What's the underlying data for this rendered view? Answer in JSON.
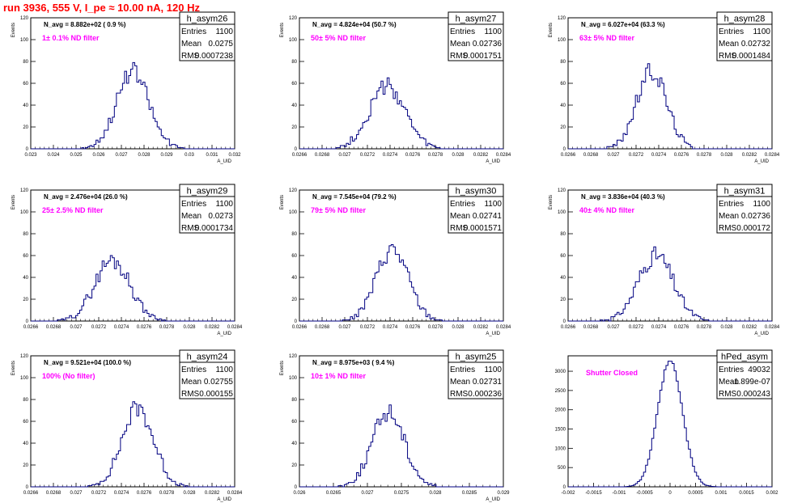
{
  "page": {
    "title": "run 3936,   555 V, I_pe ≈ 10.00 nA, 120 Hz",
    "title_color": "#ff0000",
    "hist_color": "#000080",
    "annotation_color": "#ff00ff"
  },
  "chart_data": [
    {
      "type": "bar",
      "name": "h_asym26",
      "ylabel": "Events",
      "xlabel": "A_UID",
      "nAvgText": "N_avg = 8.882e+02 ( 0.9 %)",
      "note": "1± 0.1% ND filter",
      "stats": [
        [
          "Entries",
          "1100"
        ],
        [
          "Mean",
          "0.0275"
        ],
        [
          "RMS",
          "0.0007238"
        ]
      ],
      "xlim": [
        0.023,
        0.032
      ],
      "ylim": [
        0,
        120
      ],
      "xticks": [
        "0.023",
        "0.024",
        "0.025",
        "0.026",
        "0.027",
        "0.028",
        "0.029",
        "0.03",
        "0.031",
        "0.032"
      ],
      "yticks": [
        "0",
        "20",
        "40",
        "60",
        "80",
        "100",
        "120"
      ],
      "mean": 0.0275,
      "sigma": 0.00072,
      "peak": 70,
      "seed": 26
    },
    {
      "type": "bar",
      "name": "h_asym27",
      "ylabel": "Events",
      "xlabel": "A_UID",
      "nAvgText": "N_avg = 4.824e+04 (50.7 %)",
      "note": "50± 5% ND filter",
      "stats": [
        [
          "Entries",
          "1100"
        ],
        [
          "Mean",
          "0.02736"
        ],
        [
          "RMS",
          "0.0001751"
        ]
      ],
      "xlim": [
        0.0265,
        0.0285
      ],
      "ylim": [
        0,
        120
      ],
      "xticks": [
        "0.0266",
        "0.0268",
        "0.027",
        "0.0272",
        "0.0274",
        "0.0276",
        "0.0278",
        "0.028",
        "0.0282",
        "0.0284"
      ],
      "yticks": [
        "0",
        "20",
        "40",
        "60",
        "80",
        "100",
        "120"
      ],
      "mean": 0.02736,
      "sigma": 0.000175,
      "peak": 57,
      "seed": 27
    },
    {
      "type": "bar",
      "name": "h_asym28",
      "ylabel": "Events",
      "xlabel": "A_UID",
      "nAvgText": "N_avg = 6.027e+04 (63.3 %)",
      "note": "63± 5% ND filter",
      "stats": [
        [
          "Entries",
          "1100"
        ],
        [
          "Mean",
          "0.02732"
        ],
        [
          "RMS",
          "0.0001484"
        ]
      ],
      "xlim": [
        0.0265,
        0.0285
      ],
      "ylim": [
        0,
        120
      ],
      "xticks": [
        "0.0266",
        "0.0268",
        "0.027",
        "0.0272",
        "0.0274",
        "0.0276",
        "0.0278",
        "0.028",
        "0.0282",
        "0.0284"
      ],
      "yticks": [
        "0",
        "20",
        "40",
        "60",
        "80",
        "100",
        "120"
      ],
      "mean": 0.02732,
      "sigma": 0.000148,
      "peak": 71,
      "seed": 28
    },
    {
      "type": "bar",
      "name": "h_asym29",
      "ylabel": "Events",
      "xlabel": "A_UID",
      "nAvgText": "N_avg = 2.476e+04 (26.0 %)",
      "note": "25± 2.5% ND filter",
      "stats": [
        [
          "Entries",
          "1100"
        ],
        [
          "Mean",
          "0.0273"
        ],
        [
          "RMS",
          "0.0001734"
        ]
      ],
      "xlim": [
        0.0265,
        0.0285
      ],
      "ylim": [
        0,
        120
      ],
      "xticks": [
        "0.0266",
        "0.0268",
        "0.027",
        "0.0272",
        "0.0274",
        "0.0276",
        "0.0278",
        "0.028",
        "0.0282",
        "0.0284"
      ],
      "yticks": [
        "0",
        "20",
        "40",
        "60",
        "80",
        "100",
        "120"
      ],
      "mean": 0.0273,
      "sigma": 0.000173,
      "peak": 56,
      "seed": 29
    },
    {
      "type": "bar",
      "name": "h_asym30",
      "ylabel": "Events",
      "xlabel": "A_UID",
      "nAvgText": "N_avg = 7.545e+04 (79.2 %)",
      "note": "79± 5% ND filter",
      "stats": [
        [
          "Entries",
          "1100"
        ],
        [
          "Mean",
          "0.02741"
        ],
        [
          "RMS",
          "0.0001571"
        ]
      ],
      "xlim": [
        0.0265,
        0.0285
      ],
      "ylim": [
        0,
        120
      ],
      "xticks": [
        "0.0266",
        "0.0268",
        "0.027",
        "0.0272",
        "0.0274",
        "0.0276",
        "0.0278",
        "0.028",
        "0.0282",
        "0.0284"
      ],
      "yticks": [
        "0",
        "20",
        "40",
        "60",
        "80",
        "100",
        "120"
      ],
      "mean": 0.02741,
      "sigma": 0.000157,
      "peak": 66,
      "seed": 30
    },
    {
      "type": "bar",
      "name": "h_asym31",
      "ylabel": "Events",
      "xlabel": "A_UID",
      "nAvgText": "N_avg = 3.836e+04 (40.3 %)",
      "note": "40± 4% ND filter",
      "stats": [
        [
          "Entries",
          "1100"
        ],
        [
          "Mean",
          "0.02736"
        ],
        [
          "RMS",
          "0.000172"
        ]
      ],
      "xlim": [
        0.0265,
        0.0285
      ],
      "ylim": [
        0,
        120
      ],
      "xticks": [
        "0.0266",
        "0.0268",
        "0.027",
        "0.0272",
        "0.0274",
        "0.0276",
        "0.0278",
        "0.028",
        "0.0282",
        "0.0284"
      ],
      "yticks": [
        "0",
        "20",
        "40",
        "60",
        "80",
        "100",
        "120"
      ],
      "mean": 0.02736,
      "sigma": 0.000172,
      "peak": 60,
      "seed": 31
    },
    {
      "type": "bar",
      "name": "h_asym24",
      "ylabel": "Events",
      "xlabel": "A_UID",
      "nAvgText": "N_avg = 9.521e+04 (100.0 %)",
      "note": "100% (No filter)",
      "stats": [
        [
          "Entries",
          "1100"
        ],
        [
          "Mean",
          "0.02755"
        ],
        [
          "RMS",
          "0.000155"
        ]
      ],
      "xlim": [
        0.0265,
        0.0285
      ],
      "ylim": [
        0,
        120
      ],
      "xticks": [
        "0.0266",
        "0.0268",
        "0.027",
        "0.0272",
        "0.0274",
        "0.0276",
        "0.0278",
        "0.028",
        "0.0282",
        "0.0284"
      ],
      "yticks": [
        "0",
        "20",
        "40",
        "60",
        "80",
        "100",
        "120"
      ],
      "mean": 0.02755,
      "sigma": 0.000155,
      "peak": 72,
      "seed": 24
    },
    {
      "type": "bar",
      "name": "h_asym25",
      "ylabel": "Events",
      "xlabel": "A_UID",
      "nAvgText": "N_avg = 8.975e+03 ( 9.4 %)",
      "note": "10± 1% ND filter",
      "stats": [
        [
          "Entries",
          "1100"
        ],
        [
          "Mean",
          "0.02731"
        ],
        [
          "RMS",
          "0.000236"
        ]
      ],
      "xlim": [
        0.026,
        0.029
      ],
      "ylim": [
        0,
        120
      ],
      "xticks": [
        "0.026",
        "0.0265",
        "0.027",
        "0.0275",
        "0.028",
        "0.0285",
        "0.029"
      ],
      "yticks": [
        "0",
        "20",
        "40",
        "60",
        "80",
        "100",
        "120"
      ],
      "mean": 0.02731,
      "sigma": 0.000236,
      "peak": 69,
      "seed": 25
    },
    {
      "type": "bar",
      "name": "hPed_asym",
      "ylabel": "",
      "xlabel": "",
      "nAvgText": "",
      "note": "Shutter Closed",
      "stats": [
        [
          "Entries",
          "49032"
        ],
        [
          "Mean",
          "-1.899e-07"
        ],
        [
          "RMS",
          "0.000243"
        ]
      ],
      "xlim": [
        -0.002,
        0.002
      ],
      "ylim": [
        0,
        3400
      ],
      "xticks": [
        "-0.002",
        "-0.0015",
        "-0.001",
        "-0.0005",
        "0",
        "0.0005",
        "0.001",
        "0.0015",
        "0.002"
      ],
      "yticks": [
        "0",
        "500",
        "1000",
        "1500",
        "2000",
        "2500",
        "3000"
      ],
      "mean": 0,
      "sigma": 0.000243,
      "peak": 3250,
      "seed": 99
    }
  ]
}
